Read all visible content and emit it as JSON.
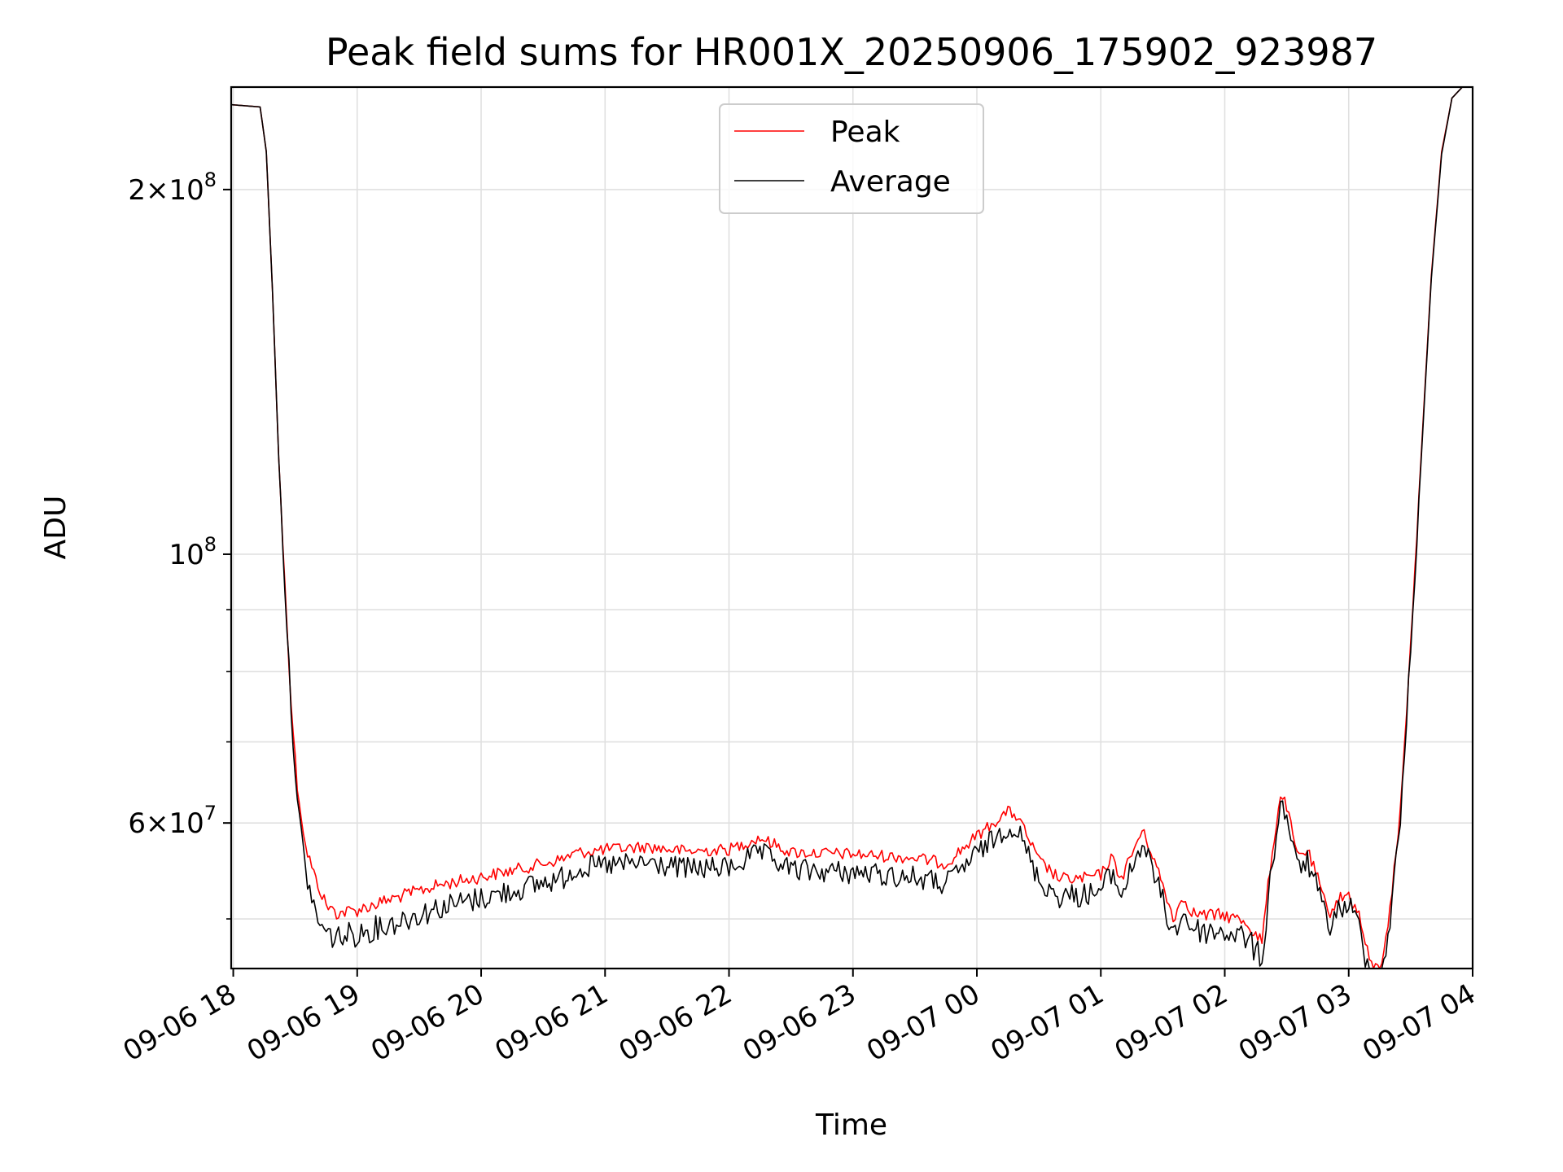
{
  "chart_data": {
    "type": "line",
    "title": "Peak field sums for HR001X_20250906_175902_923987",
    "xlabel": "Time",
    "ylabel": "ADU",
    "yscale": "log",
    "grid": true,
    "legend_position": "top-center",
    "x_ticks": [
      "09-06 18",
      "09-06 19",
      "09-06 20",
      "09-06 21",
      "09-06 22",
      "09-06 23",
      "09-07 00",
      "09-07 01",
      "09-07 02",
      "09-07 03",
      "09-07 04"
    ],
    "xlim": [
      "2025-09-06 17:59",
      "2025-09-07 04:00"
    ],
    "ylim": [
      45500000,
      243000000
    ],
    "y_major_ticks": [
      {
        "value": 200000000,
        "mantissa": "2",
        "exponent": "8"
      },
      {
        "value": 100000000,
        "mantissa": "",
        "exponent": "8"
      },
      {
        "value": 60000000,
        "mantissa": "6",
        "exponent": "7"
      }
    ],
    "y_minor_ticks": [
      50000000,
      70000000,
      80000000,
      90000000
    ],
    "series": [
      {
        "name": "Peak",
        "color": "#ff0000",
        "x": [
          "2025-09-06 17:59",
          "2025-09-06 18:13",
          "2025-09-06 18:16",
          "2025-09-06 18:19",
          "2025-09-06 18:22",
          "2025-09-06 18:25",
          "2025-09-06 18:28",
          "2025-09-06 18:31",
          "2025-09-06 18:35",
          "2025-09-06 18:40",
          "2025-09-06 18:45",
          "2025-09-06 18:50",
          "2025-09-06 19:00",
          "2025-09-06 19:20",
          "2025-09-06 19:40",
          "2025-09-06 20:00",
          "2025-09-06 20:20",
          "2025-09-06 20:40",
          "2025-09-06 20:45",
          "2025-09-06 21:00",
          "2025-09-06 21:20",
          "2025-09-06 21:40",
          "2025-09-06 22:00",
          "2025-09-06 22:15",
          "2025-09-06 22:30",
          "2025-09-06 23:00",
          "2025-09-06 23:30",
          "2025-09-06 23:45",
          "2025-09-07 00:00",
          "2025-09-07 00:15",
          "2025-09-07 00:20",
          "2025-09-07 00:30",
          "2025-09-07 00:40",
          "2025-09-07 00:50",
          "2025-09-07 01:00",
          "2025-09-07 01:05",
          "2025-09-07 01:10",
          "2025-09-07 01:20",
          "2025-09-07 01:25",
          "2025-09-07 01:35",
          "2025-09-07 01:40",
          "2025-09-07 01:45",
          "2025-09-07 01:50",
          "2025-09-07 02:00",
          "2025-09-07 02:10",
          "2025-09-07 02:18",
          "2025-09-07 02:22",
          "2025-09-07 02:27",
          "2025-09-07 02:30",
          "2025-09-07 02:35",
          "2025-09-07 02:40",
          "2025-09-07 02:45",
          "2025-09-07 02:50",
          "2025-09-07 02:55",
          "2025-09-07 03:00",
          "2025-09-07 03:05",
          "2025-09-07 03:10",
          "2025-09-07 03:15",
          "2025-09-07 03:20",
          "2025-09-07 03:25",
          "2025-09-07 03:30",
          "2025-09-07 03:35",
          "2025-09-07 03:40",
          "2025-09-07 03:45",
          "2025-09-07 03:50",
          "2025-09-07 03:55"
        ],
        "y": [
          235000000,
          234000000,
          215000000,
          165000000,
          120000000,
          95000000,
          76000000,
          65000000,
          58000000,
          54500000,
          52000000,
          51200000,
          51500000,
          52800000,
          54000000,
          54800000,
          55700000,
          56700000,
          57300000,
          57700000,
          58000000,
          57500000,
          57700000,
          59000000,
          57400000,
          57200000,
          56800000,
          56200000,
          59200000,
          62000000,
          61300000,
          56500000,
          54600000,
          54600000,
          55000000,
          56800000,
          54700000,
          59800000,
          57200000,
          50800000,
          52700000,
          51200000,
          51000000,
          51000000,
          50400000,
          48500000,
          55800000,
          64000000,
          62600000,
          57000000,
          57600000,
          54600000,
          51100000,
          52600000,
          53000000,
          51000000,
          46700000,
          45900000,
          51500000,
          62000000,
          85000000,
          120000000,
          170000000,
          215000000,
          238000000,
          243000000
        ],
        "noise": 1300000
      },
      {
        "name": "Average",
        "color": "#000000",
        "x": [
          "2025-09-06 17:59",
          "2025-09-06 18:13",
          "2025-09-06 18:16",
          "2025-09-06 18:19",
          "2025-09-06 18:22",
          "2025-09-06 18:25",
          "2025-09-06 18:28",
          "2025-09-06 18:31",
          "2025-09-06 18:35",
          "2025-09-06 18:40",
          "2025-09-06 18:45",
          "2025-09-06 18:50",
          "2025-09-06 19:00",
          "2025-09-06 19:20",
          "2025-09-06 19:40",
          "2025-09-06 20:00",
          "2025-09-06 20:20",
          "2025-09-06 20:40",
          "2025-09-06 20:45",
          "2025-09-06 21:00",
          "2025-09-06 21:20",
          "2025-09-06 21:40",
          "2025-09-06 22:00",
          "2025-09-06 22:15",
          "2025-09-06 22:30",
          "2025-09-06 23:00",
          "2025-09-06 23:30",
          "2025-09-06 23:45",
          "2025-09-07 00:00",
          "2025-09-07 00:15",
          "2025-09-07 00:20",
          "2025-09-07 00:30",
          "2025-09-07 00:40",
          "2025-09-07 00:50",
          "2025-09-07 01:00",
          "2025-09-07 01:05",
          "2025-09-07 01:10",
          "2025-09-07 01:20",
          "2025-09-07 01:25",
          "2025-09-07 01:35",
          "2025-09-07 01:40",
          "2025-09-07 01:45",
          "2025-09-07 01:50",
          "2025-09-07 02:00",
          "2025-09-07 02:10",
          "2025-09-07 02:18",
          "2025-09-07 02:22",
          "2025-09-07 02:27",
          "2025-09-07 02:30",
          "2025-09-07 02:35",
          "2025-09-07 02:40",
          "2025-09-07 02:45",
          "2025-09-07 02:50",
          "2025-09-07 02:55",
          "2025-09-07 03:00",
          "2025-09-07 03:05",
          "2025-09-07 03:10",
          "2025-09-07 03:15",
          "2025-09-07 03:20",
          "2025-09-07 03:25",
          "2025-09-07 03:30",
          "2025-09-07 03:35",
          "2025-09-07 03:40",
          "2025-09-07 03:45",
          "2025-09-07 03:50",
          "2025-09-07 03:55"
        ],
        "y": [
          235000000,
          234000000,
          215000000,
          165000000,
          120000000,
          95000000,
          76000000,
          63500000,
          56000000,
          51500000,
          49800000,
          49500000,
          49800000,
          51000000,
          52300000,
          53200000,
          54200000,
          55300000,
          56200000,
          56500000,
          56800000,
          56200000,
          56300000,
          57900000,
          56100000,
          55800000,
          55300000,
          54600000,
          57800000,
          60800000,
          60300000,
          55000000,
          53400000,
          53500000,
          53900000,
          55800000,
          53600000,
          59000000,
          56200000,
          49800000,
          51700000,
          50200000,
          50000000,
          50000000,
          49500000,
          47500000,
          55000000,
          63500000,
          62000000,
          56300000,
          57000000,
          54000000,
          50500000,
          52000000,
          52600000,
          50500000,
          46200000,
          45500000,
          51000000,
          61500000,
          84500000,
          119000000,
          169000000,
          214000000,
          238000000,
          243000000
        ],
        "noise": 2400000
      }
    ]
  }
}
